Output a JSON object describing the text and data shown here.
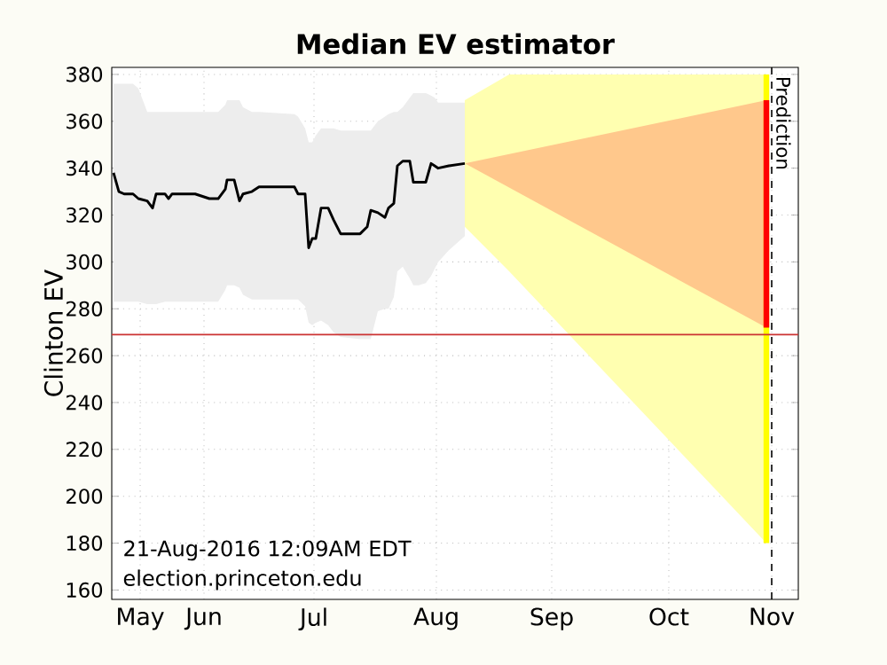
{
  "chart_data": {
    "type": "line",
    "title": "Median EV estimator",
    "ylabel": "Clinton EV",
    "xlim": [
      "2016-05-06",
      "2016-11-15T12:00"
    ],
    "ylim": [
      156,
      383
    ],
    "xticks": [
      {
        "value": "2016-05-14",
        "label": "May"
      },
      {
        "value": "2016-06-01",
        "label": "Jun"
      },
      {
        "value": "2016-07-02",
        "label": "Jul"
      },
      {
        "value": "2016-08-05T12:00",
        "label": "Aug"
      },
      {
        "value": "2016-09-07",
        "label": "Sep"
      },
      {
        "value": "2016-10-10",
        "label": "Oct"
      },
      {
        "value": "2016-11-08",
        "label": "Nov"
      }
    ],
    "yticks": [
      160,
      180,
      200,
      220,
      240,
      260,
      280,
      300,
      320,
      340,
      360,
      380
    ],
    "grid": true,
    "series": [
      {
        "type": "line",
        "color": "#ffffb0",
        "x": [
          "2016-08-13T12:00",
          "2016-08-26",
          "2016-11-06T12:00"
        ],
        "values": [
          null,
          null,
          null
        ],
        "upper": [
          369,
          380,
          380
        ],
        "lower": [
          315,
          296,
          180
        ]
      },
      {
        "type": "line",
        "color": "#ffc88c",
        "x": [
          "2016-08-13T12:00",
          "2016-11-06T12:00"
        ],
        "values": [
          null,
          null
        ],
        "upper": [
          342,
          369
        ],
        "lower": [
          342,
          272
        ]
      },
      {
        "color": "#000000",
        "x": [
          "2016-05-06T12:00",
          "2016-05-08",
          "2016-05-09T12:00",
          "2016-05-12",
          "2016-05-13T12:00",
          "2016-05-16",
          "2016-05-17T12:00",
          "2016-05-18T12:00",
          "2016-05-21",
          "2016-05-22",
          "2016-05-23",
          "2016-05-29T12:00",
          "2016-06-02T12:00",
          "2016-06-05",
          "2016-06-07",
          "2016-06-07T12:00",
          "2016-06-09T12:00",
          "2016-06-11",
          "2016-06-12",
          "2016-06-14T12:00",
          "2016-06-16T12:00",
          "2016-06-26T12:00",
          "2016-06-27T12:00",
          "2016-06-29T12:00",
          "2016-06-30T12:00",
          "2016-07-01T12:00",
          "2016-07-02T12:00",
          "2016-07-04",
          "2016-07-06",
          "2016-07-07T12:00",
          "2016-07-09T12:00",
          "2016-07-15",
          "2016-07-17",
          "2016-07-18",
          "2016-07-20",
          "2016-07-22",
          "2016-07-23",
          "2016-07-24T12:00",
          "2016-07-25T12:00",
          "2016-07-27",
          "2016-07-29",
          "2016-07-30",
          "2016-07-31T12:00",
          "2016-08-02T12:00",
          "2016-08-04",
          "2016-08-05",
          "2016-08-06",
          "2016-08-09",
          "2016-08-13T12:00"
        ],
        "values": [
          338,
          330,
          329,
          329,
          327,
          326,
          323,
          329,
          329,
          327,
          329,
          329,
          327,
          327,
          331,
          335,
          335,
          326,
          329,
          330,
          332,
          332,
          329,
          329,
          306,
          310,
          310,
          323,
          323,
          318,
          312,
          312,
          315,
          322,
          321,
          319,
          323,
          325,
          341,
          343,
          343,
          334,
          334,
          334,
          342,
          341,
          340,
          341,
          342
        ],
        "upper": [
          376,
          376,
          376,
          376,
          374,
          364,
          364,
          364,
          364,
          364,
          364,
          364,
          364,
          364,
          367,
          369,
          369,
          369,
          366,
          364,
          364,
          363,
          362,
          357,
          351,
          351,
          354,
          357,
          357,
          357,
          356,
          356,
          356,
          356,
          360,
          362,
          363,
          364,
          364,
          366,
          370,
          372,
          372,
          372,
          371,
          370,
          368,
          368,
          368
        ],
        "lower": [
          283,
          283,
          283,
          283,
          283,
          282,
          282,
          282,
          283,
          283,
          283,
          283,
          283,
          283,
          288,
          290,
          290,
          289,
          286,
          284,
          284,
          284,
          284,
          281,
          274,
          273,
          274,
          275,
          273,
          270,
          268,
          267,
          267,
          267,
          279,
          280,
          280,
          285,
          296,
          298,
          293,
          290,
          290,
          291,
          294,
          297,
          300,
          305,
          311
        ]
      },
      {
        "type": "line",
        "color": "#ffff00",
        "x": [
          "2016-11-06T12:00",
          "2016-11-06T12:00"
        ],
        "values": [
          180,
          380
        ]
      },
      {
        "type": "line",
        "color": "#ff0000",
        "x": [
          "2016-11-06T12:00",
          "2016-11-06T12:00"
        ],
        "values": [
          272,
          369
        ]
      }
    ],
    "ref_lines": [
      {
        "axis": "y",
        "value": 269,
        "color": "#cc3333",
        "line_style": "solid"
      },
      {
        "axis": "x",
        "value": "2016-11-08",
        "label": "Prediction",
        "color": "#000000",
        "line_style": "dashed"
      }
    ],
    "annotations": [
      "21-Aug-2016 12:09AM EDT",
      "election.princeton.edu"
    ]
  }
}
